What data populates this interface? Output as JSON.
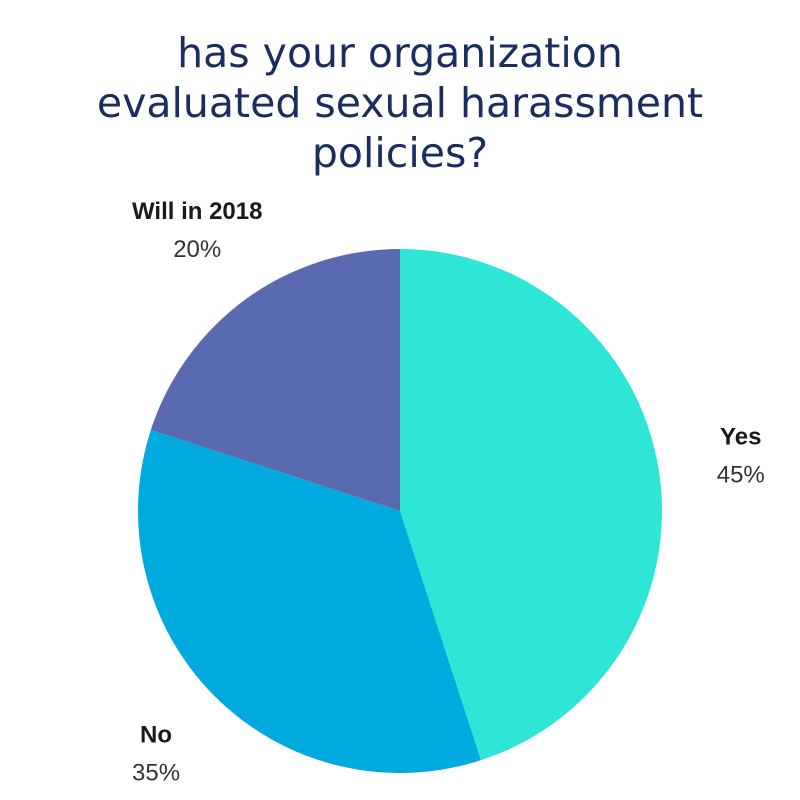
{
  "chart_data": {
    "type": "pie",
    "title": "has your organization evaluated sexual harassment policies?",
    "categories": [
      "Yes",
      "No",
      "Will in 2018"
    ],
    "values": [
      45,
      35,
      20
    ],
    "value_labels": [
      "45%",
      "35%",
      "20%"
    ],
    "colors": [
      "#2ee6d6",
      "#00a9de",
      "#5a6ab0"
    ]
  }
}
